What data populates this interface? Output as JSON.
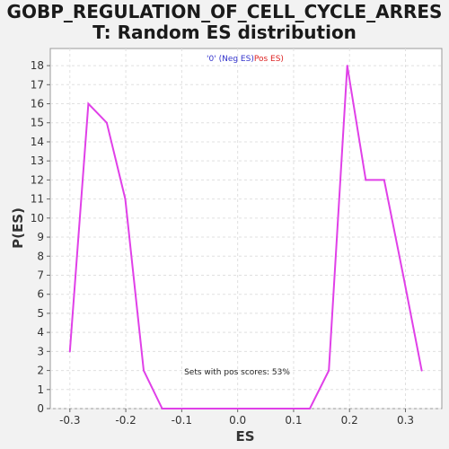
{
  "title_line1": "GOBP_REGULATION_OF_CELL_CYCLE_ARRES",
  "title_line2": "T: Random ES distribution",
  "chart_data": {
    "type": "line",
    "xlabel": "ES",
    "ylabel": "P(ES)",
    "xlim": [
      -0.335,
      0.365
    ],
    "ylim": [
      0,
      18.9
    ],
    "x_ticks": [
      -0.3,
      -0.2,
      -0.1,
      0.0,
      0.1,
      0.2,
      0.3
    ],
    "x_tick_labels": [
      "-0.3",
      "-0.2",
      "-0.1",
      "0.0",
      "0.1",
      "0.2",
      "0.3"
    ],
    "y_ticks": [
      0,
      1,
      2,
      3,
      4,
      5,
      6,
      7,
      8,
      9,
      10,
      11,
      12,
      13,
      14,
      15,
      16,
      17,
      18
    ],
    "y_tick_labels": [
      "0",
      "1",
      "2",
      "3",
      "4",
      "5",
      "6",
      "7",
      "8",
      "9",
      "10",
      "11",
      "12",
      "13",
      "14",
      "15",
      "16",
      "17",
      "18"
    ],
    "grid": true,
    "legend": {
      "placement": "top-center",
      "neg_label": "'0' (Neg ES)",
      "pos_label": "Pos ES)",
      "neg_color": "#3333cc",
      "pos_color": "#dd2222"
    },
    "annotation": "Sets with pos scores: 53%",
    "line_color": "#e040e8",
    "series": [
      {
        "x": [
          -0.3,
          -0.267,
          -0.234,
          -0.201,
          -0.168,
          -0.135,
          -0.102,
          -0.069,
          -0.036,
          -0.003,
          0.03,
          0.063,
          0.096,
          0.129,
          0.163,
          0.196,
          0.229,
          0.262,
          0.296,
          0.329
        ],
        "y": [
          3,
          16,
          15,
          11,
          2,
          0,
          0,
          0,
          0,
          0,
          0,
          0,
          0,
          0,
          2,
          18,
          12,
          12,
          7,
          2
        ]
      }
    ]
  }
}
